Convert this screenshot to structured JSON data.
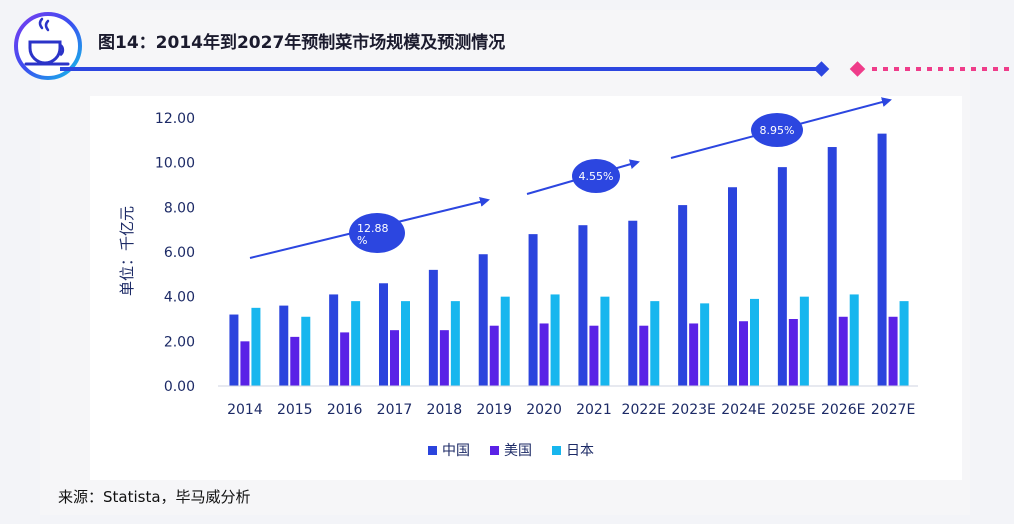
{
  "header": {
    "title": "图14：2014年到2027年预制菜市场规模及预测情况"
  },
  "footer": {
    "source": "来源：Statista，毕马威分析"
  },
  "logo": {
    "icon": "coffee-cup-icon"
  },
  "colors": {
    "accent_blue": "#2c46e0",
    "accent_pink": "#ef3c8a",
    "china": "#2b44dd",
    "usa": "#5a22e6",
    "japan": "#17b6ee"
  },
  "annotations": [
    {
      "label_line1": "12.88",
      "label_line2": "%"
    },
    {
      "label_line1": "4.55%",
      "label_line2": ""
    },
    {
      "label_line1": "8.95%",
      "label_line2": ""
    }
  ],
  "chart_data": {
    "type": "bar",
    "title": "",
    "ylabel": "单位：千亿元",
    "xlabel": "",
    "ylim": [
      0,
      12
    ],
    "yticks": [
      "0.00",
      "2.00",
      "4.00",
      "6.00",
      "8.00",
      "10.00",
      "12.00"
    ],
    "categories": [
      "2014",
      "2015",
      "2016",
      "2017",
      "2018",
      "2019",
      "2020",
      "2021",
      "2022E",
      "2023E",
      "2024E",
      "2025E",
      "2026E",
      "2027E"
    ],
    "series": [
      {
        "name": "中国",
        "values": [
          3.2,
          3.6,
          4.1,
          4.6,
          5.2,
          5.9,
          6.8,
          7.2,
          7.4,
          8.1,
          8.9,
          9.8,
          10.7,
          11.3
        ]
      },
      {
        "name": "美国",
        "values": [
          2.0,
          2.2,
          2.4,
          2.5,
          2.5,
          2.7,
          2.8,
          2.7,
          2.7,
          2.8,
          2.9,
          3.0,
          3.1,
          3.1
        ]
      },
      {
        "name": "日本",
        "values": [
          3.5,
          3.1,
          3.8,
          3.8,
          3.8,
          4.0,
          4.1,
          4.0,
          3.8,
          3.7,
          3.9,
          4.0,
          4.1,
          3.8
        ]
      }
    ],
    "legend_position": "bottom-center",
    "grid": false
  }
}
